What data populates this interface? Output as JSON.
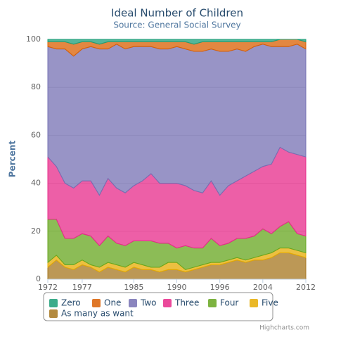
{
  "chart_data": {
    "type": "area",
    "title": "Ideal Number of Children",
    "subtitle": "Source: General Social Survey",
    "y_label": "Percent",
    "stacked": true,
    "grid": true,
    "credits": "Highcharts.com",
    "categories": [
      "1972",
      null,
      null,
      null,
      "1977",
      null,
      null,
      null,
      null,
      null,
      "1985",
      null,
      null,
      null,
      null,
      "1990",
      null,
      null,
      null,
      null,
      "1996",
      null,
      null,
      null,
      null,
      "2004",
      null,
      null,
      null,
      null,
      "2012"
    ],
    "ylim": [
      0,
      100
    ],
    "yticks": [
      0,
      20,
      40,
      60,
      80,
      100
    ],
    "series": [
      {
        "name": "Zero",
        "color": "#1b9e77",
        "values": [
          1,
          1,
          1,
          2,
          1,
          1,
          2,
          1,
          1,
          1,
          1,
          1,
          1,
          1,
          1,
          1,
          1,
          2,
          1,
          1,
          1,
          1,
          1,
          1,
          1,
          1,
          1,
          0,
          0,
          0,
          1
        ]
      },
      {
        "name": "One",
        "color": "#d95f02",
        "values": [
          2,
          3,
          3,
          5,
          3,
          2,
          2,
          3,
          1,
          3,
          2,
          2,
          2,
          3,
          3,
          2,
          3,
          3,
          4,
          3,
          4,
          4,
          3,
          4,
          2,
          1,
          2,
          3,
          3,
          2,
          3
        ]
      },
      {
        "name": "Two",
        "color": "#7570b3",
        "values": [
          46,
          49,
          56,
          55,
          55,
          56,
          61,
          54,
          60,
          60,
          58,
          56,
          53,
          56,
          56,
          57,
          57,
          58,
          59,
          55,
          60,
          56,
          55,
          52,
          52,
          51,
          49,
          42,
          44,
          46,
          45
        ]
      },
      {
        "name": "Three",
        "color": "#e7298a",
        "values": [
          26,
          22,
          23,
          21,
          22,
          23,
          21,
          24,
          23,
          22,
          23,
          25,
          28,
          25,
          25,
          27,
          25,
          24,
          23,
          24,
          21,
          24,
          24,
          26,
          27,
          26,
          29,
          33,
          29,
          33,
          33
        ]
      },
      {
        "name": "Four",
        "color": "#66a61e",
        "values": [
          18,
          15,
          11,
          11,
          11,
          12,
          9,
          11,
          9,
          9,
          9,
          10,
          11,
          10,
          8,
          6,
          10,
          8,
          7,
          10,
          7,
          7,
          8,
          9,
          9,
          11,
          8,
          9,
          11,
          7,
          7
        ]
      },
      {
        "name": "Five",
        "color": "#e6ab02",
        "values": [
          2,
          2,
          1,
          2,
          2,
          1,
          2,
          2,
          2,
          2,
          2,
          2,
          1,
          2,
          3,
          3,
          1,
          1,
          1,
          1,
          1,
          1,
          1,
          1,
          1,
          2,
          2,
          2,
          2,
          2,
          2
        ]
      },
      {
        "name": "As many as want",
        "color": "#a6761d",
        "values": [
          5,
          8,
          5,
          4,
          6,
          5,
          3,
          5,
          4,
          3,
          5,
          4,
          4,
          3,
          4,
          4,
          3,
          4,
          5,
          6,
          6,
          7,
          8,
          7,
          8,
          8,
          9,
          11,
          11,
          10,
          9
        ]
      }
    ]
  }
}
